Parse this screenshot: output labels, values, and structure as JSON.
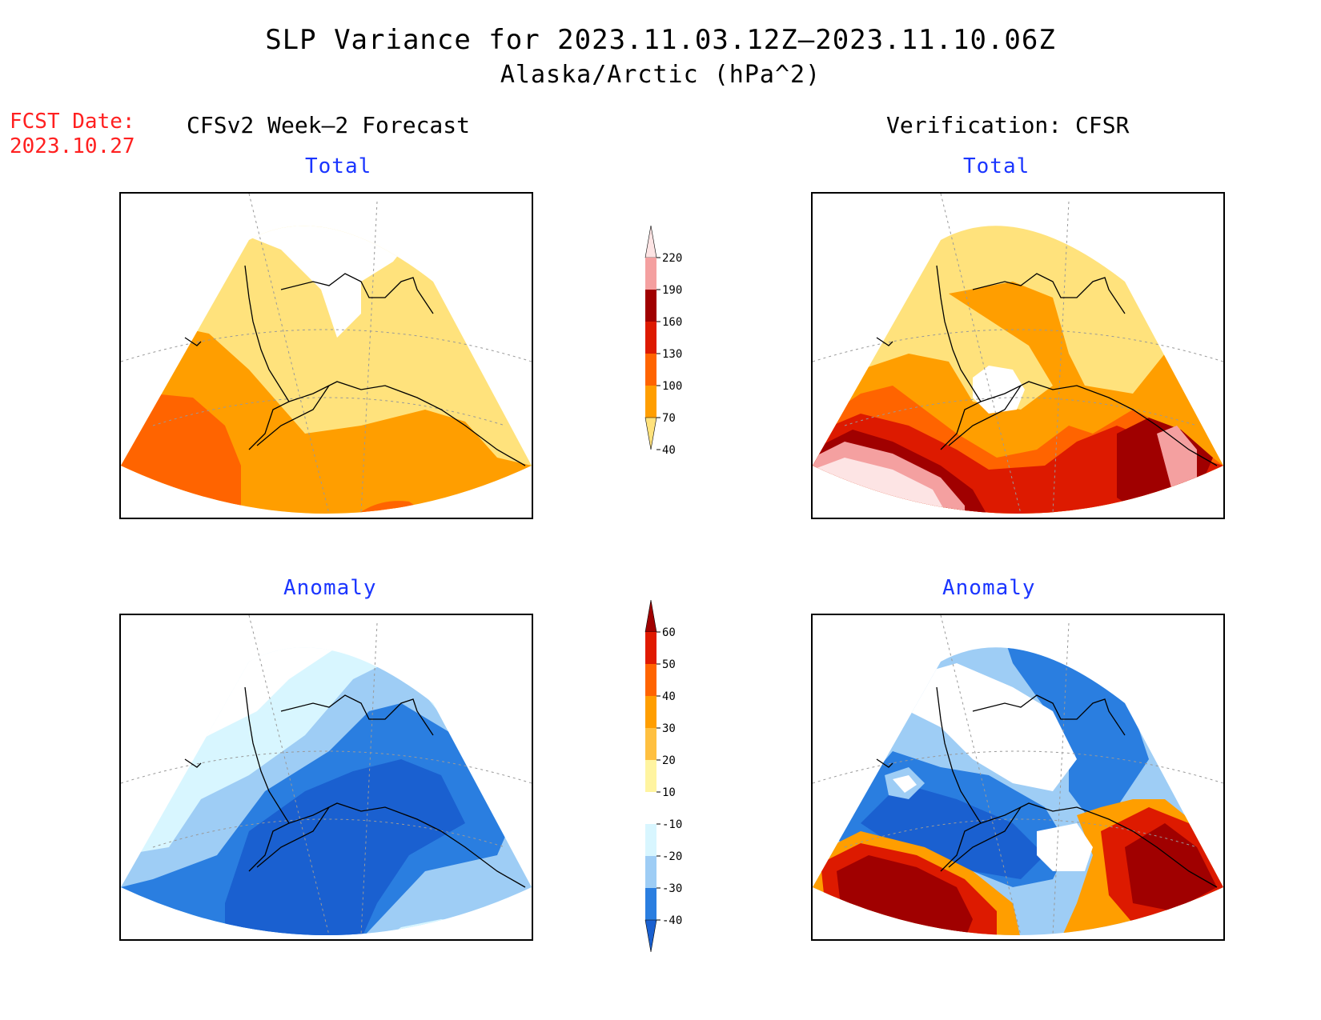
{
  "header": {
    "title": "SLP Variance for 2023.11.03.12Z–2023.11.10.06Z",
    "subtitle": "Alaska/Arctic (hPa^2)",
    "fcst_label": "FCST Date:",
    "fcst_date": "2023.10.27"
  },
  "columns": {
    "left": "CFSv2 Week–2 Forecast",
    "right": "Verification: CFSR"
  },
  "panels": {
    "forecast_total": "Total",
    "verif_total": "Total",
    "forecast_anomaly": "Anomaly",
    "verif_anomaly": "Anomaly"
  },
  "colorbars": {
    "total": {
      "labels": [
        "220",
        "190",
        "160",
        "130",
        "100",
        "70",
        "40"
      ],
      "colors": [
        "#fde4e4",
        "#f4a0a0",
        "#a00000",
        "#dd1a00",
        "#ff6400",
        "#ff9e00",
        "#ffe27c"
      ]
    },
    "anomaly": {
      "labels": [
        "60",
        "50",
        "40",
        "30",
        "20",
        "10",
        "-10",
        "-20",
        "-30",
        "-40"
      ],
      "colors": [
        "#a00000",
        "#e01a00",
        "#ff6400",
        "#ff9e00",
        "#ffc040",
        "#fff4a0",
        "#ffffff",
        "#d8f6ff",
        "#9ecdf5",
        "#2a7ee0",
        "#1a60d0"
      ]
    }
  },
  "colors": {
    "title_blue": "#1a35ff",
    "fcst_red": "#ff2020"
  }
}
